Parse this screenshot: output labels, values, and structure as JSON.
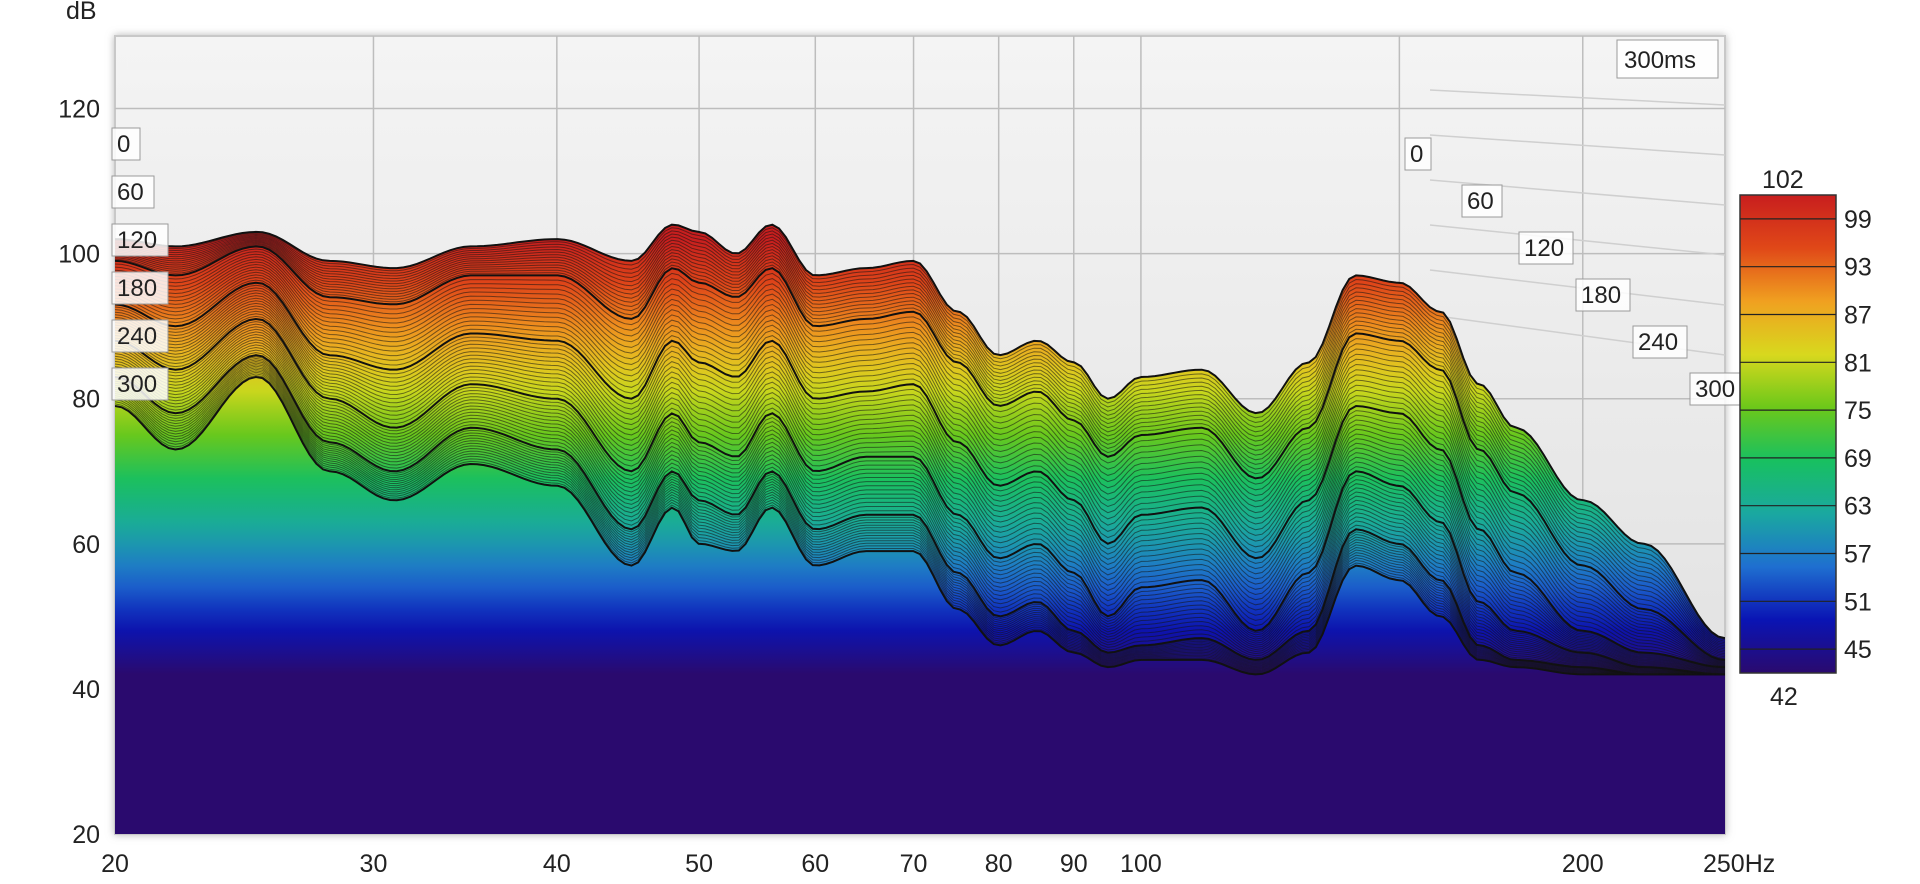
{
  "chart_data": {
    "type": "waterfall",
    "y_axis": {
      "unit_label": "dB",
      "ticks": [
        "120",
        "100",
        "80",
        "60",
        "40",
        "20"
      ],
      "range": [
        20,
        130
      ]
    },
    "x_axis": {
      "scale": "log",
      "range": [
        20,
        250
      ],
      "ticks": [
        {
          "value": 20,
          "label": "20"
        },
        {
          "value": 30,
          "label": "30"
        },
        {
          "value": 40,
          "label": "40"
        },
        {
          "value": 50,
          "label": "50"
        },
        {
          "value": 60,
          "label": "60"
        },
        {
          "value": 70,
          "label": "70"
        },
        {
          "value": 80,
          "label": "80"
        },
        {
          "value": 90,
          "label": "90"
        },
        {
          "value": 100,
          "label": "100"
        },
        {
          "value": 200,
          "label": "200"
        },
        {
          "value": 250,
          "label": "250Hz"
        }
      ]
    },
    "time_label": "300ms",
    "time_axis_labels_left": [
      "0",
      "60",
      "120",
      "180",
      "240",
      "300"
    ],
    "time_axis_labels_right": [
      "0",
      "60",
      "120",
      "180",
      "240",
      "300"
    ],
    "time_ms": [
      0,
      60,
      120,
      180,
      240,
      300
    ],
    "colorbar": {
      "max_label": "102",
      "min_label": "42",
      "ticks": [
        "99",
        "93",
        "87",
        "81",
        "75",
        "69",
        "63",
        "57",
        "51",
        "45"
      ],
      "range": [
        42,
        102
      ],
      "colors": [
        "#2a0a6e",
        "#0a14b4",
        "#1f6fd0",
        "#1aa8a0",
        "#18c060",
        "#6cc81a",
        "#d8d81e",
        "#f0a020",
        "#e04818",
        "#c81e1e"
      ]
    },
    "series": [
      {
        "time_ms": 0,
        "freqs": [
          20,
          22,
          25,
          28,
          31,
          35,
          40,
          45,
          48,
          50,
          53,
          56,
          60,
          65,
          70,
          75,
          80,
          85,
          90,
          95,
          100,
          110,
          120,
          130,
          140,
          150,
          160,
          170,
          180,
          200,
          220,
          250
        ],
        "db": [
          102,
          101,
          103,
          99,
          98,
          101,
          102,
          99,
          104,
          103,
          100,
          104,
          97,
          98,
          99,
          92,
          86,
          88,
          85,
          80,
          83,
          84,
          78,
          85,
          97,
          96,
          92,
          82,
          76,
          66,
          60,
          47
        ]
      },
      {
        "time_ms": 60,
        "freqs": [
          20,
          22,
          25,
          28,
          31,
          35,
          40,
          45,
          48,
          50,
          53,
          56,
          60,
          65,
          70,
          75,
          80,
          85,
          90,
          95,
          100,
          110,
          120,
          130,
          140,
          150,
          160,
          170,
          180,
          200,
          220,
          250
        ],
        "db": [
          99,
          97,
          101,
          94,
          93,
          97,
          97,
          91,
          98,
          96,
          94,
          98,
          90,
          91,
          92,
          85,
          79,
          81,
          77,
          72,
          75,
          76,
          69,
          76,
          89,
          88,
          84,
          73,
          67,
          57,
          51,
          44
        ]
      },
      {
        "time_ms": 120,
        "freqs": [
          20,
          22,
          25,
          28,
          31,
          35,
          40,
          45,
          48,
          50,
          53,
          56,
          60,
          65,
          70,
          75,
          80,
          85,
          90,
          95,
          100,
          110,
          120,
          130,
          140,
          150,
          160,
          170,
          180,
          200,
          220,
          250
        ],
        "db": [
          93,
          90,
          96,
          86,
          84,
          89,
          88,
          80,
          88,
          85,
          83,
          88,
          80,
          81,
          82,
          74,
          68,
          70,
          66,
          60,
          64,
          65,
          58,
          66,
          79,
          78,
          73,
          62,
          56,
          48,
          45,
          43
        ]
      },
      {
        "time_ms": 180,
        "freqs": [
          20,
          22,
          25,
          28,
          31,
          35,
          40,
          45,
          48,
          50,
          53,
          56,
          60,
          65,
          70,
          75,
          80,
          85,
          90,
          95,
          100,
          110,
          120,
          130,
          140,
          150,
          160,
          170,
          180,
          200,
          220,
          250
        ],
        "db": [
          88,
          84,
          91,
          80,
          76,
          82,
          80,
          70,
          78,
          74,
          72,
          78,
          70,
          72,
          72,
          64,
          58,
          60,
          56,
          50,
          54,
          55,
          48,
          56,
          70,
          68,
          63,
          52,
          48,
          45,
          43,
          42
        ]
      },
      {
        "time_ms": 240,
        "freqs": [
          20,
          22,
          25,
          28,
          31,
          35,
          40,
          45,
          48,
          50,
          53,
          56,
          60,
          65,
          70,
          75,
          80,
          85,
          90,
          95,
          100,
          110,
          120,
          130,
          140,
          150,
          160,
          170,
          180,
          200,
          220,
          250
        ],
        "db": [
          83,
          78,
          86,
          74,
          70,
          76,
          73,
          62,
          70,
          66,
          64,
          70,
          62,
          64,
          64,
          56,
          50,
          52,
          48,
          45,
          46,
          47,
          44,
          48,
          62,
          60,
          55,
          46,
          44,
          43,
          42,
          42
        ]
      },
      {
        "time_ms": 300,
        "freqs": [
          20,
          22,
          25,
          28,
          31,
          35,
          40,
          45,
          48,
          50,
          53,
          56,
          60,
          65,
          70,
          75,
          80,
          85,
          90,
          95,
          100,
          110,
          120,
          130,
          140,
          150,
          160,
          170,
          180,
          200,
          220,
          250
        ],
        "db": [
          79,
          73,
          83,
          70,
          66,
          71,
          68,
          57,
          65,
          60,
          59,
          65,
          57,
          59,
          59,
          51,
          46,
          48,
          45,
          43,
          44,
          44,
          42,
          45,
          57,
          55,
          50,
          44,
          43,
          42,
          42,
          42
        ]
      }
    ]
  }
}
